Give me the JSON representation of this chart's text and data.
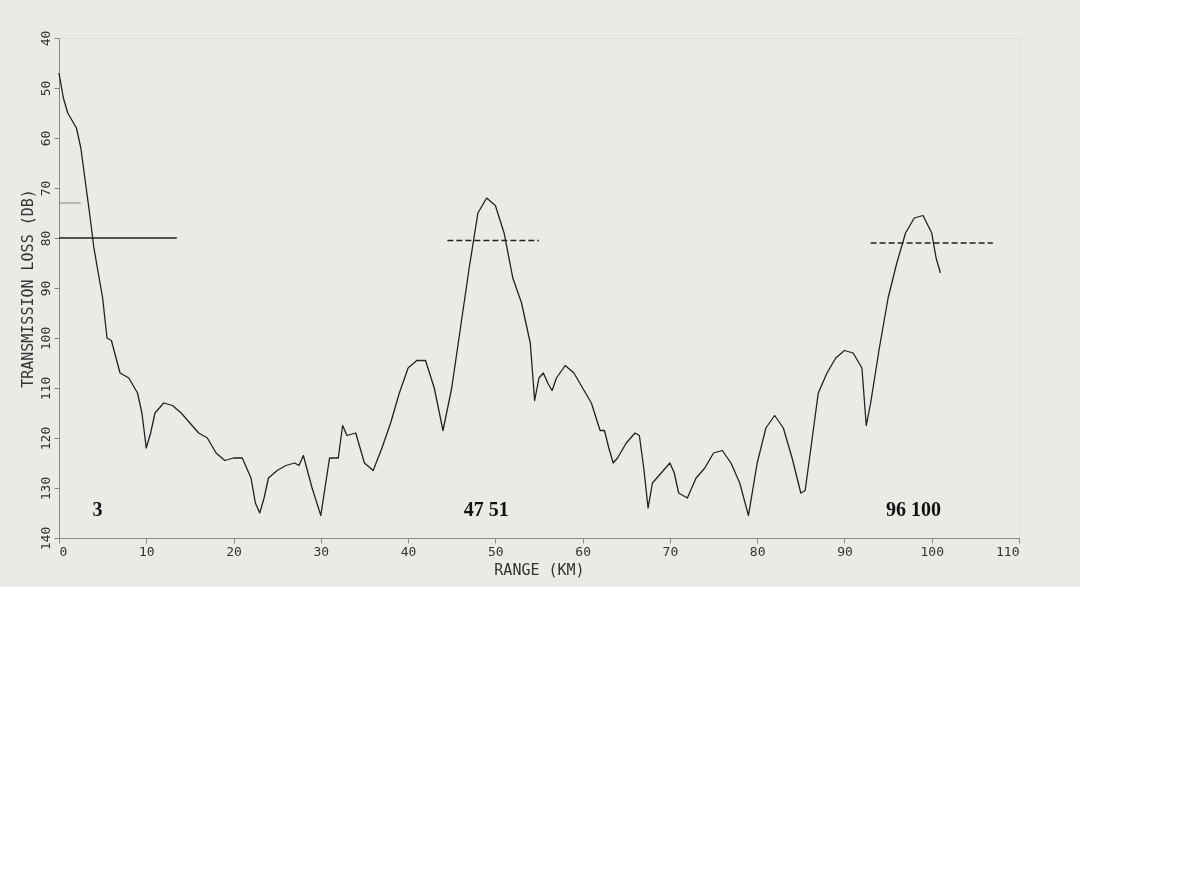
{
  "chart_data": {
    "type": "line",
    "xlabel": "RANGE (KM)",
    "ylabel": "TRANSMISSION LOSS (DB)",
    "xlim": [
      0,
      110
    ],
    "xticks": [
      0,
      10,
      20,
      30,
      40,
      50,
      60,
      70,
      80,
      90,
      100,
      110
    ],
    "ylim": [
      140,
      40
    ],
    "yticks": [
      40,
      50,
      60,
      70,
      80,
      90,
      100,
      110,
      120,
      130,
      140
    ],
    "grid": false,
    "marker": "none",
    "series": [
      {
        "color": "#222222",
        "line_style": "solid",
        "x": [
          0,
          0.5,
          1,
          2,
          2.5,
          3.5,
          4,
          4.5,
          5,
          5.5,
          6,
          7,
          8,
          9,
          9.5,
          10,
          10.5,
          11,
          12,
          13,
          14,
          15,
          16,
          17,
          18,
          19,
          20,
          21,
          22,
          22.5,
          23,
          23.5,
          24,
          25,
          26,
          27,
          27.5,
          28,
          29,
          30,
          31,
          32,
          32.5,
          33,
          34,
          35,
          36,
          37,
          38,
          39,
          40,
          41,
          42,
          43,
          44,
          45,
          46,
          47,
          48,
          49,
          50,
          51,
          52,
          53,
          54,
          54.5,
          55,
          55.5,
          56,
          56.5,
          57,
          58,
          59,
          60,
          61,
          62,
          62.5,
          63,
          63.5,
          64,
          65,
          66,
          66.5,
          67,
          67.5,
          68,
          69,
          70,
          70.5,
          71,
          72,
          73,
          74,
          75,
          76,
          77,
          78,
          79,
          80,
          81,
          82,
          83,
          84,
          85,
          85.5,
          86,
          87,
          88,
          89,
          90,
          91,
          92,
          92.5,
          93,
          94,
          95,
          96,
          97,
          98,
          99,
          100,
          100.5,
          101
        ],
        "values": [
          47,
          52,
          55,
          58,
          62,
          75,
          82,
          87,
          92,
          100,
          100.5,
          107,
          108,
          111,
          115,
          122,
          119,
          115,
          113,
          113.5,
          115,
          117,
          119,
          120,
          123,
          124.5,
          124,
          124,
          128,
          133,
          135,
          132,
          128,
          126.5,
          125.5,
          125,
          125.5,
          123.5,
          130,
          135.5,
          124,
          124,
          117.5,
          119.5,
          119,
          125,
          126.5,
          122,
          117,
          111,
          106,
          104.5,
          104.5,
          110,
          118.5,
          110,
          98,
          86,
          75,
          72,
          73.5,
          79,
          88,
          93,
          101,
          112.5,
          108,
          107,
          109,
          110.5,
          108,
          105.5,
          107,
          110,
          113,
          118.5,
          118.5,
          122,
          125,
          124,
          121,
          119,
          119.5,
          126,
          134,
          129,
          127,
          125,
          127,
          131,
          132,
          128,
          126,
          123,
          122.5,
          125,
          129,
          135.5,
          125,
          118,
          115.5,
          118,
          124,
          131,
          130.5,
          124,
          111,
          107,
          104,
          102.5,
          103,
          106,
          117.5,
          113,
          102,
          92,
          85,
          79,
          76,
          75.5,
          79,
          84,
          87
        ]
      },
      {
        "color": "#222222",
        "line_style": "solid",
        "x": [
          0,
          13.5
        ],
        "values": [
          80,
          80
        ]
      },
      {
        "color": "#999999",
        "line_style": "solid",
        "x": [
          0,
          2.5
        ],
        "values": [
          73,
          73
        ]
      },
      {
        "color": "#222222",
        "line_style": "dashed",
        "x": [
          44.5,
          55
        ],
        "values": [
          80.5,
          80.5
        ]
      },
      {
        "color": "#222222",
        "line_style": "dashed",
        "x": [
          93,
          107
        ],
        "values": [
          81,
          81
        ]
      }
    ],
    "annotations": [
      "3",
      "47  51",
      "96 100"
    ]
  }
}
